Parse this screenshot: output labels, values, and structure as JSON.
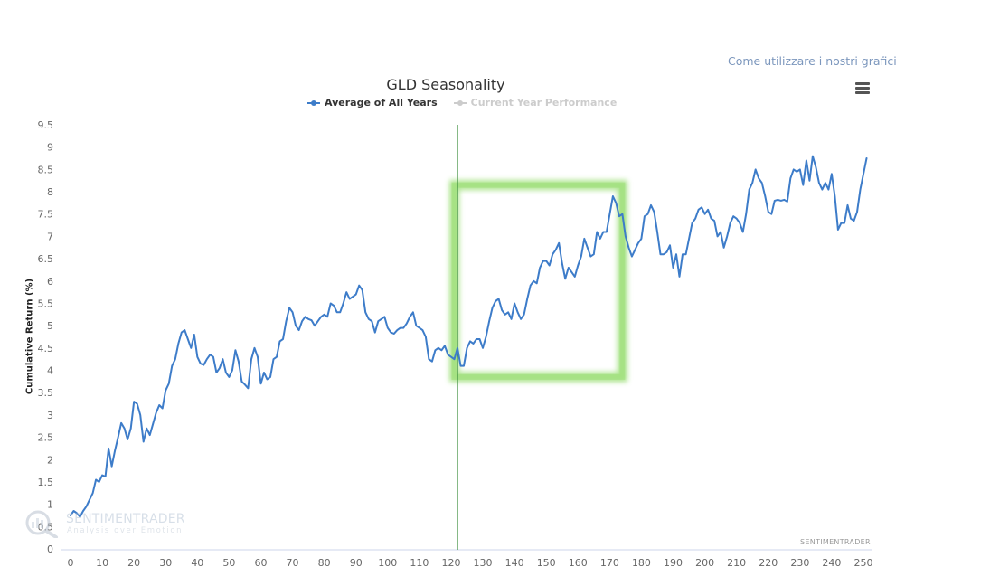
{
  "header": {
    "help_link": "Come utilizzare i nostri grafici",
    "menu_icon": "hamburger-menu-icon"
  },
  "watermark": {
    "brand": "SENTIMENTRADER",
    "tagline": "Analysis over Emotion"
  },
  "credit": "SENTIMENTRADER",
  "colors": {
    "series": "#3d7cc9",
    "inactive_series": "#cccccc",
    "marker_line": "#3f8f3f",
    "highlight_box": "#9fe07a",
    "axis": "#ccd6eb",
    "tick_text": "#666666"
  },
  "chart_data": {
    "type": "line",
    "title": "GLD Seasonality",
    "xlabel": "",
    "ylabel": "Cumulative Return (%)",
    "xlim": [
      0,
      250
    ],
    "ylim": [
      0,
      9.5
    ],
    "grid": false,
    "legend_placement": "top-center",
    "x_ticks": [
      "0",
      "10",
      "20",
      "30",
      "40",
      "50",
      "60",
      "70",
      "80",
      "90",
      "100",
      "110",
      "120",
      "130",
      "140",
      "150",
      "160",
      "170",
      "180",
      "190",
      "200",
      "210",
      "220",
      "230",
      "240",
      "250"
    ],
    "y_ticks": [
      "0",
      "0.5",
      "1",
      "1.5",
      "2",
      "2.5",
      "3",
      "3.5",
      "4",
      "4.5",
      "5",
      "5.5",
      "6",
      "6.5",
      "7",
      "7.5",
      "8",
      "8.5",
      "9",
      "9.5"
    ],
    "legend": [
      {
        "name": "Average of All Years",
        "active": true
      },
      {
        "name": "Current Year Performance",
        "active": false
      }
    ],
    "vertical_marker_x": 122,
    "highlight_region": {
      "x_start": 121,
      "x_end": 174,
      "y_start": 3.85,
      "y_end": 8.15
    },
    "series": [
      {
        "name": "Average of All Years",
        "x_start": 0,
        "values": [
          0.75,
          0.85,
          0.8,
          0.72,
          0.85,
          0.95,
          1.1,
          1.25,
          1.55,
          1.5,
          1.65,
          1.62,
          2.25,
          1.85,
          2.2,
          2.5,
          2.82,
          2.7,
          2.45,
          2.7,
          3.3,
          3.25,
          3.0,
          2.4,
          2.7,
          2.55,
          2.8,
          3.05,
          3.22,
          3.15,
          3.55,
          3.7,
          4.1,
          4.25,
          4.6,
          4.85,
          4.9,
          4.7,
          4.5,
          4.8,
          4.3,
          4.15,
          4.12,
          4.25,
          4.35,
          4.3,
          3.95,
          4.05,
          4.25,
          3.95,
          3.85,
          4.0,
          4.45,
          4.2,
          3.75,
          3.68,
          3.6,
          4.25,
          4.5,
          4.3,
          3.7,
          3.95,
          3.8,
          3.85,
          4.25,
          4.3,
          4.65,
          4.7,
          5.1,
          5.4,
          5.3,
          5.0,
          4.9,
          5.1,
          5.2,
          5.15,
          5.12,
          5.0,
          5.1,
          5.2,
          5.25,
          5.2,
          5.5,
          5.45,
          5.3,
          5.3,
          5.5,
          5.75,
          5.6,
          5.65,
          5.7,
          5.9,
          5.8,
          5.3,
          5.15,
          5.1,
          4.85,
          5.1,
          5.15,
          5.2,
          4.95,
          4.85,
          4.82,
          4.9,
          4.95,
          4.95,
          5.05,
          5.2,
          5.3,
          5.0,
          4.95,
          4.9,
          4.75,
          4.25,
          4.2,
          4.45,
          4.5,
          4.45,
          4.55,
          4.35,
          4.3,
          4.25,
          4.5,
          4.1,
          4.1,
          4.5,
          4.65,
          4.6,
          4.7,
          4.7,
          4.5,
          4.75,
          5.1,
          5.4,
          5.55,
          5.6,
          5.35,
          5.25,
          5.3,
          5.15,
          5.5,
          5.3,
          5.15,
          5.25,
          5.6,
          5.9,
          6.0,
          5.95,
          6.3,
          6.45,
          6.45,
          6.35,
          6.6,
          6.7,
          6.85,
          6.4,
          6.05,
          6.3,
          6.2,
          6.1,
          6.35,
          6.55,
          6.95,
          6.75,
          6.55,
          6.6,
          7.1,
          6.95,
          7.1,
          7.1,
          7.5,
          7.9,
          7.75,
          7.45,
          7.5,
          7.0,
          6.75,
          6.55,
          6.7,
          6.85,
          6.95,
          7.45,
          7.5,
          7.7,
          7.55,
          7.1,
          6.6,
          6.6,
          6.65,
          6.8,
          6.3,
          6.6,
          6.1,
          6.6,
          6.6,
          6.95,
          7.3,
          7.4,
          7.6,
          7.65,
          7.5,
          7.6,
          7.4,
          7.35,
          7.0,
          7.1,
          6.75,
          7.0,
          7.3,
          7.45,
          7.4,
          7.3,
          7.1,
          7.5,
          8.05,
          8.2,
          8.5,
          8.3,
          8.2,
          7.9,
          7.55,
          7.5,
          7.8,
          7.82,
          7.8,
          7.82,
          7.78,
          8.3,
          8.5,
          8.45,
          8.5,
          8.15,
          8.7,
          8.25,
          8.8,
          8.55,
          8.2,
          8.05,
          8.2,
          8.05,
          8.4,
          7.9,
          7.15,
          7.3,
          7.3,
          7.7,
          7.4,
          7.35,
          7.55,
          8.05,
          8.4,
          8.75
        ]
      }
    ]
  }
}
